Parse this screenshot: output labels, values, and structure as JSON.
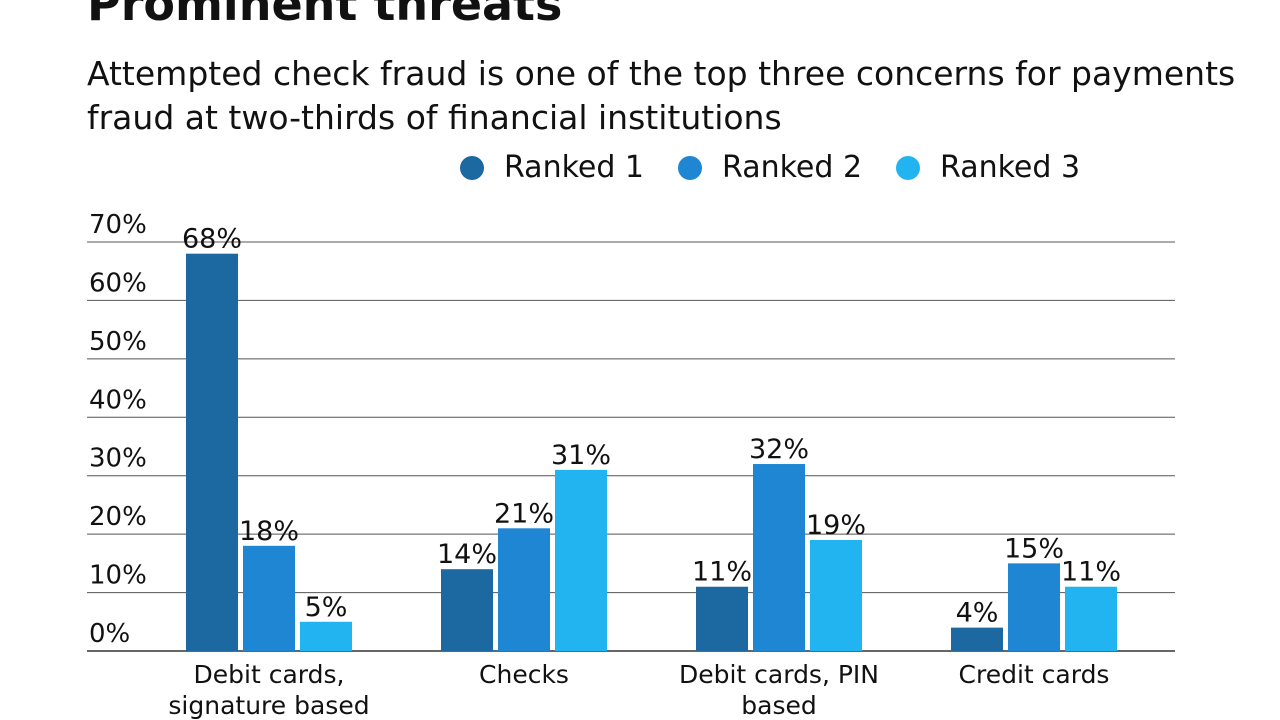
{
  "chart_data": {
    "type": "bar",
    "title": "Prominent threats",
    "subtitle": "Attempted check fraud is one of the top three concerns for payments fraud at two-thirds of financial institutions",
    "categories": [
      [
        "Debit cards,",
        "signature based"
      ],
      [
        "Checks"
      ],
      [
        "Debit cards, PIN",
        "based"
      ],
      [
        "Credit cards"
      ]
    ],
    "series": [
      {
        "name": "Ranked 1",
        "color": "#1c68a0",
        "values": [
          68,
          14,
          11,
          4
        ]
      },
      {
        "name": "Ranked 2",
        "color": "#1e86d2",
        "values": [
          18,
          21,
          32,
          15
        ]
      },
      {
        "name": "Ranked 3",
        "color": "#22b4f0",
        "values": [
          5,
          31,
          19,
          11
        ]
      }
    ],
    "yticks": [
      "0%",
      "10%",
      "20%",
      "30%",
      "40%",
      "50%",
      "60%",
      "70%"
    ],
    "ylim": [
      0,
      70
    ],
    "grid": true,
    "legend": "top"
  }
}
